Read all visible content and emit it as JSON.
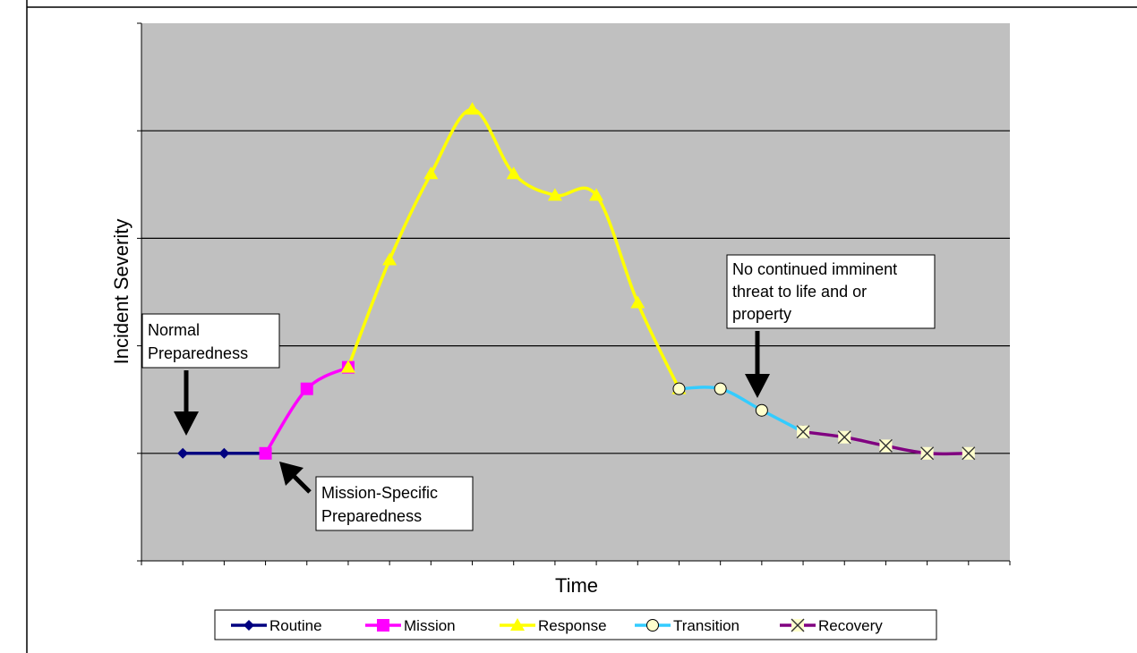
{
  "chart_data": {
    "type": "line",
    "xlabel": "Time",
    "ylabel": "Incident Severity",
    "xlim": [
      0,
      21
    ],
    "ylim": [
      0,
      5
    ],
    "grid": "horizontal",
    "legend_position": "bottom",
    "colors": {
      "plot_bg": "#c0c0c0",
      "routine": "#000080",
      "mission": "#ff00ff",
      "response": "#ffff00",
      "transition": "#33ccff",
      "recovery": "#800080",
      "marker_fill": "#ffffcc"
    },
    "series": [
      {
        "name": "Routine",
        "marker": "diamond",
        "x": [
          1,
          2,
          3
        ],
        "y": [
          1,
          1,
          1
        ]
      },
      {
        "name": "Mission",
        "marker": "square",
        "x": [
          3,
          4,
          5
        ],
        "y": [
          1,
          1.6,
          1.8
        ]
      },
      {
        "name": "Response",
        "marker": "triangle",
        "x": [
          5,
          6,
          7,
          8,
          9,
          10,
          11,
          12,
          13
        ],
        "y": [
          1.8,
          2.8,
          3.6,
          4.2,
          3.6,
          3.4,
          3.4,
          2.4,
          1.6
        ]
      },
      {
        "name": "Transition",
        "marker": "circle",
        "x": [
          13,
          14,
          15,
          16
        ],
        "y": [
          1.6,
          1.6,
          1.4,
          1.2
        ]
      },
      {
        "name": "Recovery",
        "marker": "x",
        "x": [
          16,
          17,
          18,
          19,
          20
        ],
        "y": [
          1.2,
          1.15,
          1.07,
          1,
          1
        ]
      }
    ],
    "annotations": [
      {
        "lines": [
          "Normal",
          "Preparedness"
        ]
      },
      {
        "lines": [
          "Mission-Specific",
          "Preparedness"
        ]
      },
      {
        "lines": [
          "No continued imminent",
          "threat to life and or",
          "property"
        ]
      }
    ]
  }
}
